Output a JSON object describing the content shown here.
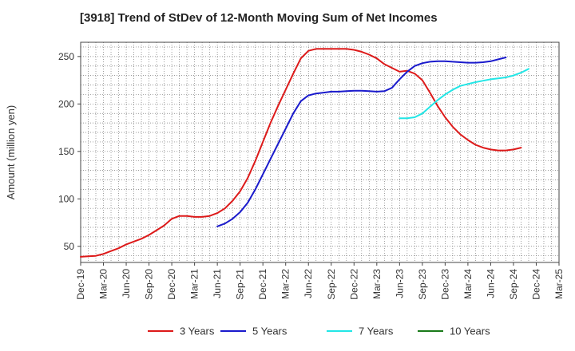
{
  "chart_data": {
    "type": "line",
    "title": "[3918]  Trend of StDev of 12-Month Moving Sum of Net Incomes",
    "xlabel": "",
    "ylabel": "Amount (million yen)",
    "ylim": [
      33,
      265
    ],
    "yticks": [
      50,
      100,
      150,
      200,
      250
    ],
    "x_ticks": [
      "Dec-19",
      "Mar-20",
      "Jun-20",
      "Sep-20",
      "Dec-20",
      "Mar-21",
      "Jun-21",
      "Sep-21",
      "Dec-21",
      "Mar-22",
      "Jun-22",
      "Sep-22",
      "Dec-22",
      "Mar-23",
      "Jun-23",
      "Sep-23",
      "Dec-23",
      "Mar-24",
      "Jun-24",
      "Sep-24",
      "Dec-24",
      "Mar-25"
    ],
    "grid": true,
    "legend_position": "bottom",
    "series": [
      {
        "name": "3 Years",
        "color": "#dd1a1a",
        "values": [
          [
            "Dec-19",
            39
          ],
          [
            "Jan-20",
            39.5
          ],
          [
            "Feb-20",
            40
          ],
          [
            "Mar-20",
            42
          ],
          [
            "Apr-20",
            45
          ],
          [
            "May-20",
            48
          ],
          [
            "Jun-20",
            52
          ],
          [
            "Jul-20",
            55
          ],
          [
            "Aug-20",
            58
          ],
          [
            "Sep-20",
            62
          ],
          [
            "Oct-20",
            67
          ],
          [
            "Nov-20",
            72
          ],
          [
            "Dec-20",
            79
          ],
          [
            "Jan-21",
            82
          ],
          [
            "Feb-21",
            82
          ],
          [
            "Mar-21",
            81
          ],
          [
            "Apr-21",
            81
          ],
          [
            "May-21",
            82
          ],
          [
            "Jun-21",
            85
          ],
          [
            "Jul-21",
            90
          ],
          [
            "Aug-21",
            98
          ],
          [
            "Sep-21",
            108
          ],
          [
            "Oct-21",
            122
          ],
          [
            "Nov-21",
            140
          ],
          [
            "Dec-21",
            160
          ],
          [
            "Jan-22",
            180
          ],
          [
            "Feb-22",
            198
          ],
          [
            "Mar-22",
            215
          ],
          [
            "Apr-22",
            232
          ],
          [
            "May-22",
            248
          ],
          [
            "Jun-22",
            256
          ],
          [
            "Jul-22",
            258
          ],
          [
            "Aug-22",
            258
          ],
          [
            "Sep-22",
            258
          ],
          [
            "Oct-22",
            258
          ],
          [
            "Nov-22",
            258
          ],
          [
            "Dec-22",
            257
          ],
          [
            "Jan-23",
            255
          ],
          [
            "Feb-23",
            252
          ],
          [
            "Mar-23",
            248
          ],
          [
            "Apr-23",
            242
          ],
          [
            "May-23",
            238
          ],
          [
            "Jun-23",
            234
          ],
          [
            "Jul-23",
            235
          ],
          [
            "Aug-23",
            232
          ],
          [
            "Sep-23",
            225
          ],
          [
            "Oct-23",
            212
          ],
          [
            "Nov-23",
            198
          ],
          [
            "Dec-23",
            186
          ],
          [
            "Jan-24",
            176
          ],
          [
            "Feb-24",
            168
          ],
          [
            "Mar-24",
            162
          ],
          [
            "Apr-24",
            157
          ],
          [
            "May-24",
            154
          ],
          [
            "Jun-24",
            152
          ],
          [
            "Jul-24",
            151
          ],
          [
            "Aug-24",
            151
          ],
          [
            "Sep-24",
            152
          ],
          [
            "Oct-24",
            154
          ]
        ]
      },
      {
        "name": "5 Years",
        "color": "#1a1acc",
        "values": [
          [
            "Jun-21",
            71
          ],
          [
            "Jul-21",
            74
          ],
          [
            "Aug-21",
            79
          ],
          [
            "Sep-21",
            86
          ],
          [
            "Oct-21",
            96
          ],
          [
            "Nov-21",
            110
          ],
          [
            "Dec-21",
            126
          ],
          [
            "Jan-22",
            142
          ],
          [
            "Feb-22",
            158
          ],
          [
            "Mar-22",
            174
          ],
          [
            "Apr-22",
            190
          ],
          [
            "May-22",
            203
          ],
          [
            "Jun-22",
            209
          ],
          [
            "Jul-22",
            211
          ],
          [
            "Aug-22",
            212
          ],
          [
            "Sep-22",
            213
          ],
          [
            "Oct-22",
            213
          ],
          [
            "Nov-22",
            213.5
          ],
          [
            "Dec-22",
            214
          ],
          [
            "Jan-23",
            214
          ],
          [
            "Feb-23",
            213.5
          ],
          [
            "Mar-23",
            213
          ],
          [
            "Apr-23",
            213.5
          ],
          [
            "May-23",
            217
          ],
          [
            "Jun-23",
            226
          ],
          [
            "Jul-23",
            234
          ],
          [
            "Aug-23",
            240
          ],
          [
            "Sep-23",
            243
          ],
          [
            "Oct-23",
            244.5
          ],
          [
            "Nov-23",
            245
          ],
          [
            "Dec-23",
            245
          ],
          [
            "Jan-24",
            244.5
          ],
          [
            "Feb-24",
            244
          ],
          [
            "Mar-24",
            243.5
          ],
          [
            "Apr-24",
            243.5
          ],
          [
            "May-24",
            244
          ],
          [
            "Jun-24",
            245
          ],
          [
            "Jul-24",
            247
          ],
          [
            "Aug-24",
            249
          ]
        ]
      },
      {
        "name": "7 Years",
        "color": "#22e6e6",
        "values": [
          [
            "Jun-23",
            185
          ],
          [
            "Jul-23",
            185
          ],
          [
            "Aug-23",
            186
          ],
          [
            "Sep-23",
            190
          ],
          [
            "Oct-23",
            197
          ],
          [
            "Nov-23",
            204
          ],
          [
            "Dec-23",
            210
          ],
          [
            "Jan-24",
            215
          ],
          [
            "Feb-24",
            219
          ],
          [
            "Mar-24",
            221
          ],
          [
            "Apr-24",
            223
          ],
          [
            "May-24",
            224.5
          ],
          [
            "Jun-24",
            226
          ],
          [
            "Jul-24",
            227
          ],
          [
            "Aug-24",
            228
          ],
          [
            "Sep-24",
            230
          ],
          [
            "Oct-24",
            233
          ],
          [
            "Nov-24",
            237
          ]
        ]
      },
      {
        "name": "10 Years",
        "color": "#1a7a1a",
        "values": []
      }
    ]
  }
}
